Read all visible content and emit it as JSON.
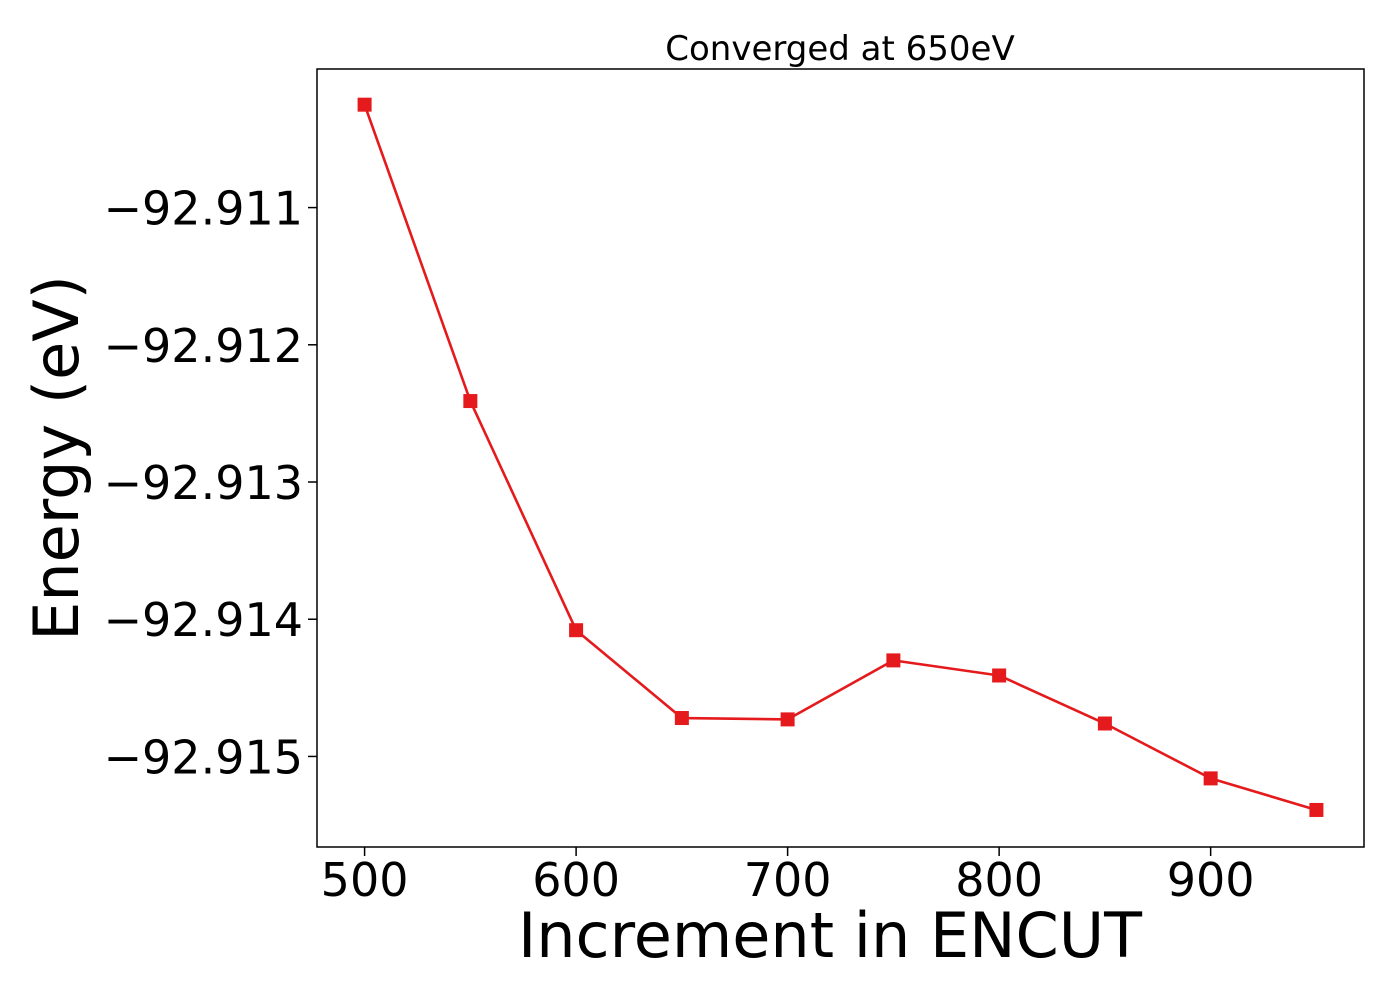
{
  "chart_data": {
    "type": "line",
    "title": "Converged at 650eV",
    "xlabel": "Increment in ENCUT",
    "ylabel": "Energy (eV)",
    "x": [
      500,
      550,
      600,
      650,
      700,
      750,
      800,
      850,
      900,
      950
    ],
    "series": [
      {
        "values": [
          -92.91025,
          -92.91241,
          -92.91408,
          -92.91472,
          -92.91473,
          -92.9143,
          -92.91441,
          -92.91476,
          -92.91516,
          -92.91539
        ]
      }
    ],
    "xlim": [
      477.5,
      972.5
    ],
    "ylim": [
      -92.91566,
      -92.90999
    ],
    "xticks": [
      500,
      600,
      700,
      800,
      900
    ],
    "xtick_labels": [
      "500",
      "600",
      "700",
      "800",
      "900"
    ],
    "yticks": [
      -92.911,
      -92.912,
      -92.913,
      -92.914,
      -92.915
    ],
    "ytick_labels": [
      "−92.911",
      "−92.912",
      "−92.913",
      "−92.914",
      "−92.915"
    ],
    "grid": false,
    "legend": "none",
    "colors": {
      "series": "#e41a1c",
      "axes": "#000000"
    },
    "marker": "square"
  }
}
